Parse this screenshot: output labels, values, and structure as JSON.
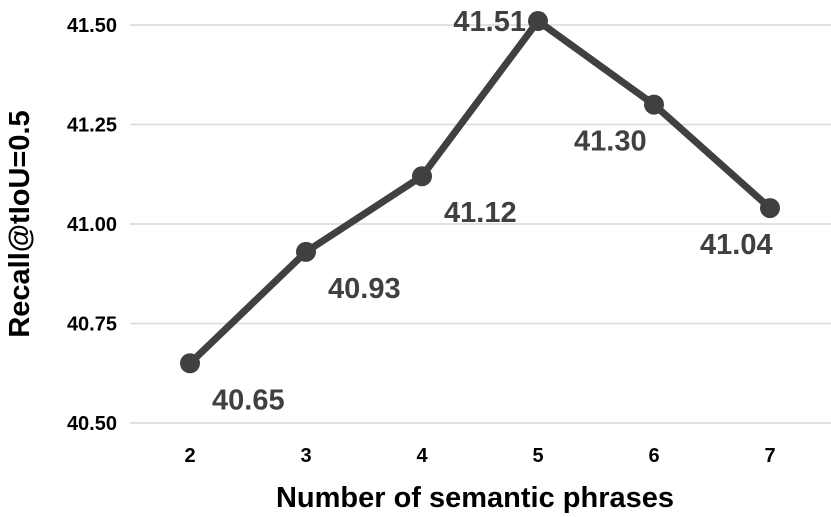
{
  "chart_data": {
    "type": "line",
    "x": [
      "2",
      "3",
      "4",
      "5",
      "6",
      "7"
    ],
    "series": [
      {
        "values": [
          40.65,
          40.93,
          41.12,
          41.51,
          41.3,
          41.04
        ]
      }
    ],
    "data_labels": [
      "40.65",
      "40.93",
      "41.12",
      "41.51",
      "41.30",
      "41.04"
    ],
    "yticks": [
      "40.50",
      "40.75",
      "41.00",
      "41.25",
      "41.50"
    ],
    "ytick_values": [
      40.5,
      40.75,
      41.0,
      41.25,
      41.5
    ],
    "xlabel": "Number of semantic phrases",
    "ylabel": "Recall@tIoU=0.5",
    "ylim": [
      40.5,
      41.5
    ],
    "grid": "horizontal",
    "legend": "none",
    "colors": {
      "line": "#404040",
      "marker": "#404040",
      "label": "#404040",
      "grid": "#d9d9d9"
    }
  }
}
